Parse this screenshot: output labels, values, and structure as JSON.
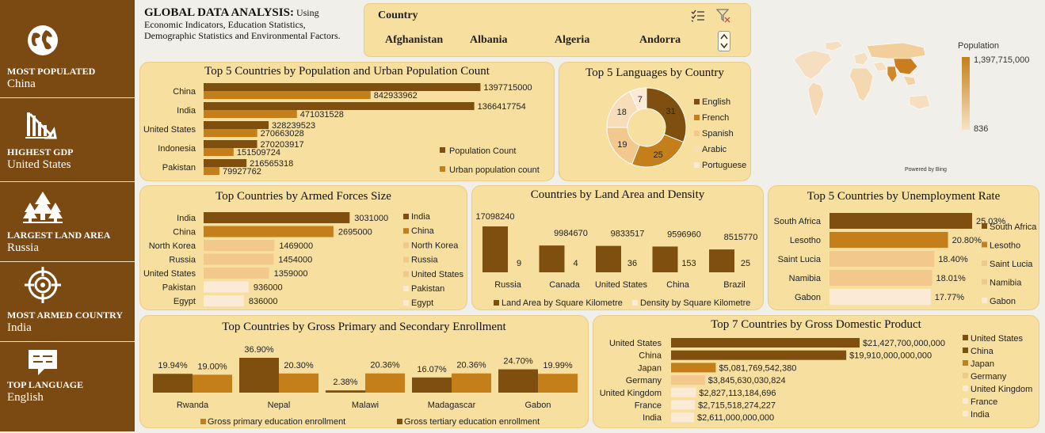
{
  "header": {
    "title_bold": "GLOBAL DATA ANALYSIS:",
    "title_rest": "Using Economic Indicators, Education Statistics, Demographic Statistics and Environmental Factors."
  },
  "sidebar": [
    {
      "label": "MOST POPULATED",
      "value": "China",
      "icon": "globe-icon"
    },
    {
      "label": "HIGHEST GDP",
      "value": "United States",
      "icon": "bar-chart-icon"
    },
    {
      "label": "LARGEST LAND AREA",
      "value": "Russia",
      "icon": "trees-icon"
    },
    {
      "label": "MOST ARMED COUNTRY",
      "value": "India",
      "icon": "target-icon"
    },
    {
      "label": "TOP LANGUAGE",
      "value": "English",
      "icon": "chat-icon"
    }
  ],
  "slicer": {
    "title": "Country",
    "items": [
      "Afghanistan",
      "Albania",
      "Algeria",
      "Andorra"
    ]
  },
  "map": {
    "legend_title": "Population",
    "max_label": "1,397,715,000",
    "min_label": "836",
    "credit": "Powered by Bing"
  },
  "colors": {
    "dark": "#7f4f0f",
    "mid": "#c47f1a",
    "light": "#f2c88d",
    "pale": "#f8ddb9",
    "paler": "#fbead6",
    "card": "#f7dfa0",
    "sidebar": "#7b4a12"
  },
  "chart_data": [
    {
      "id": "population",
      "type": "bar",
      "title": "Top 5 Countries by Population and Urban Population Count",
      "categories": [
        "China",
        "India",
        "United States",
        "Indonesia",
        "Pakistan"
      ],
      "series": [
        {
          "name": "Population Count",
          "values": [
            1397715000,
            1366417754,
            328239523,
            270203917,
            216565318
          ]
        },
        {
          "name": "Urban population count",
          "values": [
            842933962,
            471031528,
            270663028,
            151509724,
            79927762
          ]
        }
      ],
      "labels": [
        [
          "1397715000",
          "842933962"
        ],
        [
          "1366417754",
          "471031528"
        ],
        [
          "328239523",
          "270663028"
        ],
        [
          "270203917",
          "151509724"
        ],
        [
          "216565318",
          "79927762"
        ]
      ]
    },
    {
      "id": "languages",
      "type": "pie",
      "title": "Top 5 Languages by Country",
      "categories": [
        "English",
        "French",
        "Spanish",
        "Arabic",
        "Portuguese"
      ],
      "values": [
        31,
        25,
        19,
        18,
        7
      ],
      "labels": [
        "31",
        "25",
        "19",
        "18",
        "7"
      ]
    },
    {
      "id": "armed",
      "type": "bar",
      "title": "Top Countries by Armed Forces Size",
      "categories": [
        "India",
        "China",
        "North Korea",
        "Russia",
        "United States",
        "Pakistan",
        "Egypt"
      ],
      "values": [
        3031000,
        2695000,
        1469000,
        1454000,
        1359000,
        936000,
        836000
      ],
      "labels": [
        "3031000",
        "2695000",
        "1469000",
        "1454000",
        "1359000",
        "936000",
        "836000"
      ],
      "legend": [
        "India",
        "China",
        "North Korea",
        "Russia",
        "United States",
        "Pakistan",
        "Egypt"
      ]
    },
    {
      "id": "land",
      "type": "bar",
      "title": "Countries by Land Area and Density",
      "categories": [
        "Russia",
        "Canada",
        "United States",
        "China",
        "Brazil"
      ],
      "series": [
        {
          "name": "Land Area by Square Kilometre",
          "values": [
            17098240,
            9984670,
            9833517,
            9596960,
            8515770
          ]
        },
        {
          "name": "Density by Square Kilometre",
          "values": [
            9,
            4,
            36,
            153,
            25
          ]
        }
      ],
      "labels": [
        [
          "17098240",
          "9"
        ],
        [
          "9984670",
          "4"
        ],
        [
          "9833517",
          "36"
        ],
        [
          "9596960",
          "153"
        ],
        [
          "8515770",
          "25"
        ]
      ]
    },
    {
      "id": "unemployment",
      "type": "bar",
      "title": "Top 5 Countries by Unemployment Rate",
      "categories": [
        "South Africa",
        "Lesotho",
        "Saint Lucia",
        "Namibia",
        "Gabon"
      ],
      "values": [
        25.03,
        20.8,
        18.4,
        18.01,
        17.77
      ],
      "labels": [
        "25.03%",
        "20.80%",
        "18.40%",
        "18.01%",
        "17.77%"
      ],
      "legend": [
        "South Africa",
        "Lesotho",
        "Saint Lucia",
        "Namibia",
        "Gabon"
      ]
    },
    {
      "id": "enrollment",
      "type": "bar",
      "title": "Top Countries by Gross Primary and Secondary Enrollment",
      "categories": [
        "Rwanda",
        "Nepal",
        "Malawi",
        "Madagascar",
        "Gabon"
      ],
      "series": [
        {
          "name": "Gross tertiary education enrollment",
          "values": [
            19.94,
            36.9,
            2.38,
            16.07,
            24.7
          ]
        },
        {
          "name": "Gross primary education enrollment",
          "values": [
            19.0,
            20.3,
            20.36,
            20.36,
            19.99
          ]
        }
      ],
      "labels": [
        [
          "19.94%",
          "19.00%"
        ],
        [
          "36.90%",
          "20.30%"
        ],
        [
          "2.38%",
          "20.36%"
        ],
        [
          "16.07%",
          "20.36%"
        ],
        [
          "24.70%",
          "19.99%"
        ]
      ],
      "legend": [
        "Gross primary education enrollment",
        "Gross tertiary education enrollment"
      ]
    },
    {
      "id": "gdp",
      "type": "bar",
      "title": "Top 7 Countries by Gross Domestic Product",
      "categories": [
        "United States",
        "China",
        "Japan",
        "Germany",
        "United Kingdom",
        "France",
        "India"
      ],
      "values": [
        21427700000000,
        19910000000000,
        5081769542380,
        3845630030824,
        2827113184696,
        2715518274227,
        2611000000000
      ],
      "labels": [
        "$21,427,700,000,000",
        "$19,910,000,000,000",
        "$5,081,769,542,380",
        "$3,845,630,030,824",
        "$2,827,113,184,696",
        "$2,715,518,274,227",
        "$2,611,000,000,000"
      ],
      "legend": [
        "United States",
        "China",
        "Japan",
        "Germany",
        "United Kingdom",
        "France",
        "India"
      ]
    }
  ]
}
